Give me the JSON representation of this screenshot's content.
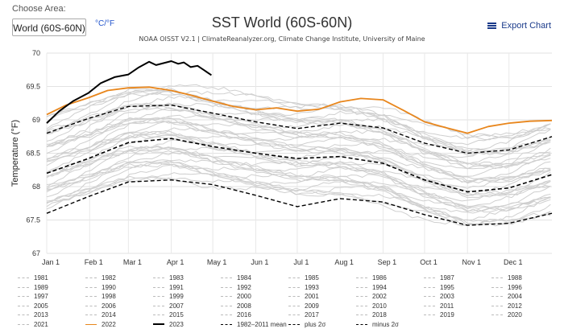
{
  "controls": {
    "choose_area_label": "Choose Area:",
    "selected_area": "World (60S-60N)",
    "unit_toggle": "°C/°F",
    "export_label": "Export Chart"
  },
  "colors": {
    "background_year": "#cfcfcf",
    "year_2022": "#e8861c",
    "year_2023": "#000000",
    "mean": "#000000"
  },
  "chart_data": {
    "type": "line",
    "title": "SST World (60S-60N)",
    "subtitle": "NOAA OISST V2.1 | ClimateReanalyzer.org, Climate Change Institute, University of Maine",
    "ylabel": "Temperature (°F)",
    "xlabel": "",
    "ylim": [
      67,
      70
    ],
    "yticks": [
      67,
      67.5,
      68,
      68.5,
      69,
      69.5,
      70
    ],
    "month_labels": [
      "Jan 1",
      "Feb 1",
      "Mar 1",
      "Apr 1",
      "May 1",
      "Jun 1",
      "Jul 1",
      "Aug 1",
      "Sep 1",
      "Oct 1",
      "Nov 1",
      "Dec 1"
    ],
    "month_start_days": [
      1,
      32,
      60,
      91,
      121,
      152,
      182,
      213,
      244,
      274,
      305,
      335
    ],
    "days_in_year": 366,
    "grid": true,
    "highlight_series": [
      {
        "name": "2023",
        "days": [
          1,
          10,
          20,
          31,
          40,
          50,
          60,
          67,
          75,
          80,
          91,
          96,
          100,
          105,
          110,
          115,
          120
        ],
        "values": [
          68.95,
          69.13,
          69.28,
          69.4,
          69.55,
          69.64,
          69.68,
          69.78,
          69.87,
          69.82,
          69.88,
          69.84,
          69.86,
          69.79,
          69.81,
          69.74,
          69.67
        ]
      },
      {
        "name": "2022",
        "days": [
          1,
          15,
          31,
          45,
          60,
          75,
          91,
          105,
          121,
          136,
          152,
          167,
          182,
          198,
          213,
          228,
          244,
          259,
          274,
          290,
          305,
          320,
          335,
          350,
          366
        ],
        "values": [
          69.08,
          69.22,
          69.33,
          69.44,
          69.48,
          69.49,
          69.44,
          69.37,
          69.28,
          69.2,
          69.15,
          69.18,
          69.13,
          69.16,
          69.27,
          69.32,
          69.3,
          69.14,
          68.97,
          68.88,
          68.8,
          68.9,
          68.95,
          68.98,
          68.99
        ]
      },
      {
        "name": "1982-2011 mean",
        "days": [
          1,
          31,
          60,
          91,
          121,
          152,
          182,
          213,
          244,
          274,
          305,
          335,
          366
        ],
        "values": [
          68.2,
          68.42,
          68.66,
          68.72,
          68.6,
          68.5,
          68.42,
          68.45,
          68.35,
          68.1,
          67.92,
          67.98,
          68.18
        ]
      },
      {
        "name": "plus 2σ",
        "days": [
          1,
          31,
          60,
          91,
          121,
          152,
          182,
          213,
          244,
          274,
          305,
          335,
          366
        ],
        "values": [
          68.8,
          69.02,
          69.2,
          69.22,
          69.1,
          68.97,
          68.87,
          68.95,
          68.88,
          68.65,
          68.5,
          68.55,
          68.75
        ]
      },
      {
        "name": "minus 2σ",
        "days": [
          1,
          31,
          60,
          91,
          121,
          152,
          182,
          213,
          244,
          274,
          305,
          335,
          366
        ],
        "values": [
          67.6,
          67.85,
          68.07,
          68.1,
          68.03,
          67.87,
          67.7,
          67.82,
          67.77,
          67.58,
          67.42,
          67.45,
          67.6
        ]
      }
    ],
    "legend": [
      "1981",
      "1982",
      "1983",
      "1984",
      "1985",
      "1986",
      "1987",
      "1988",
      "1989",
      "1990",
      "1991",
      "1992",
      "1993",
      "1994",
      "1995",
      "1996",
      "1997",
      "1998",
      "1999",
      "2000",
      "2001",
      "2002",
      "2003",
      "2004",
      "2005",
      "2006",
      "2007",
      "2008",
      "2009",
      "2010",
      "2011",
      "2012",
      "2013",
      "2014",
      "2015",
      "2016",
      "2017",
      "2018",
      "2019",
      "2020",
      "2021",
      "2022",
      "2023",
      "1982–2011 mean",
      "plus 2σ",
      "minus 2σ"
    ]
  }
}
